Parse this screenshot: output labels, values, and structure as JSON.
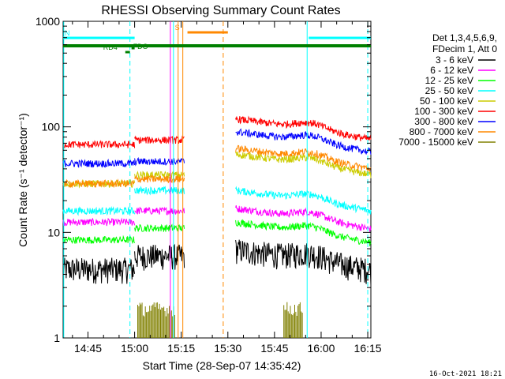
{
  "chart_data": {
    "type": "line",
    "title": "RHESSI Observing Summary Count Rates",
    "xlabel": "Start Time (28-Sep-07 14:35:42)",
    "ylabel": "Count Rate (s⁻¹ detector⁻¹)",
    "yscale": "log",
    "ylim": [
      1,
      1000
    ],
    "xlim_minutes_after_1435": [
      2,
      101
    ],
    "x_ticks": [
      {
        "label": "14:45",
        "min": 10
      },
      {
        "label": "15:00",
        "min": 25
      },
      {
        "label": "15:15",
        "min": 40
      },
      {
        "label": "15:30",
        "min": 55
      },
      {
        "label": "15:45",
        "min": 70
      },
      {
        "label": "16:00",
        "min": 85
      },
      {
        "label": "16:15",
        "min": 100
      }
    ],
    "y_ticks": [
      {
        "label": "1",
        "value": 1
      },
      {
        "label": "10",
        "value": 10
      },
      {
        "label": "100",
        "value": 100
      },
      {
        "label": "1000",
        "value": 1000
      }
    ],
    "legend_header": [
      "Det 1,3,4,5,6,9,",
      "FDecim 1, Att 0"
    ],
    "legend_position": "right",
    "series": [
      {
        "name": "3 - 6 keV",
        "color": "#000000"
      },
      {
        "name": "6 - 12 keV",
        "color": "#ff00ff"
      },
      {
        "name": "12 - 25 keV",
        "color": "#00ff00"
      },
      {
        "name": "25 - 50 keV",
        "color": "#00ffff"
      },
      {
        "name": "50 - 100 keV",
        "color": "#cccc00"
      },
      {
        "name": "100 - 300 keV",
        "color": "#ff0000"
      },
      {
        "name": "300 - 800 keV",
        "color": "#0000ff"
      },
      {
        "name": "800 - 7000 keV",
        "color": "#ff8800"
      },
      {
        "name": "7000 - 15000 keV",
        "color": "#808000"
      }
    ],
    "segments": [
      {
        "x_start": 2,
        "x_end": 25,
        "levels": {
          "3 - 6 keV": 4.5,
          "6 - 12 keV": 12.5,
          "12 - 25 keV": 8.5,
          "25 - 50 keV": 16,
          "50 - 100 keV": 29,
          "100 - 300 keV": 68,
          "300 - 800 keV": 45,
          "800 - 7000 keV": 29
        }
      },
      {
        "x_start": 25,
        "x_end": 41,
        "levels": {
          "3 - 6 keV": 6,
          "6 - 12 keV": 16,
          "12 - 25 keV": 11,
          "25 - 50 keV": 25,
          "50 - 100 keV": 35,
          "100 - 300 keV": 75,
          "300 - 800 keV": 47,
          "800 - 7000 keV": 32
        }
      },
      {
        "x_start": 57.5,
        "x_end": 101,
        "levels": {
          "3 - 6 keV": 5.5,
          "6 - 12 keV": 13.5,
          "12 - 25 keV": 10,
          "25 - 50 keV": 20,
          "50 - 100 keV": 44,
          "100 - 300 keV": 95,
          "300 - 800 keV": 72,
          "800 - 7000 keV": 50
        }
      }
    ],
    "flags": [
      {
        "label": "N",
        "x_start": 2,
        "x_end": 25,
        "color": "#00ffff"
      },
      {
        "label": "",
        "x_start": 81,
        "x_end": 101,
        "color": "#00ffff"
      },
      {
        "label": "S",
        "x_start": 42,
        "x_end": 55,
        "color": "#ff8800"
      },
      {
        "label": "",
        "x_start": 2,
        "x_end": 101,
        "color": "#008000"
      },
      {
        "label": "RD4",
        "x_start": 22,
        "x_end": 23.5,
        "color": "#008000"
      },
      {
        "label": "FDO",
        "x_start": 24,
        "x_end": 25,
        "color": "#008000"
      }
    ]
  },
  "footer": {
    "date": "16-Oct-2021 18:21"
  }
}
